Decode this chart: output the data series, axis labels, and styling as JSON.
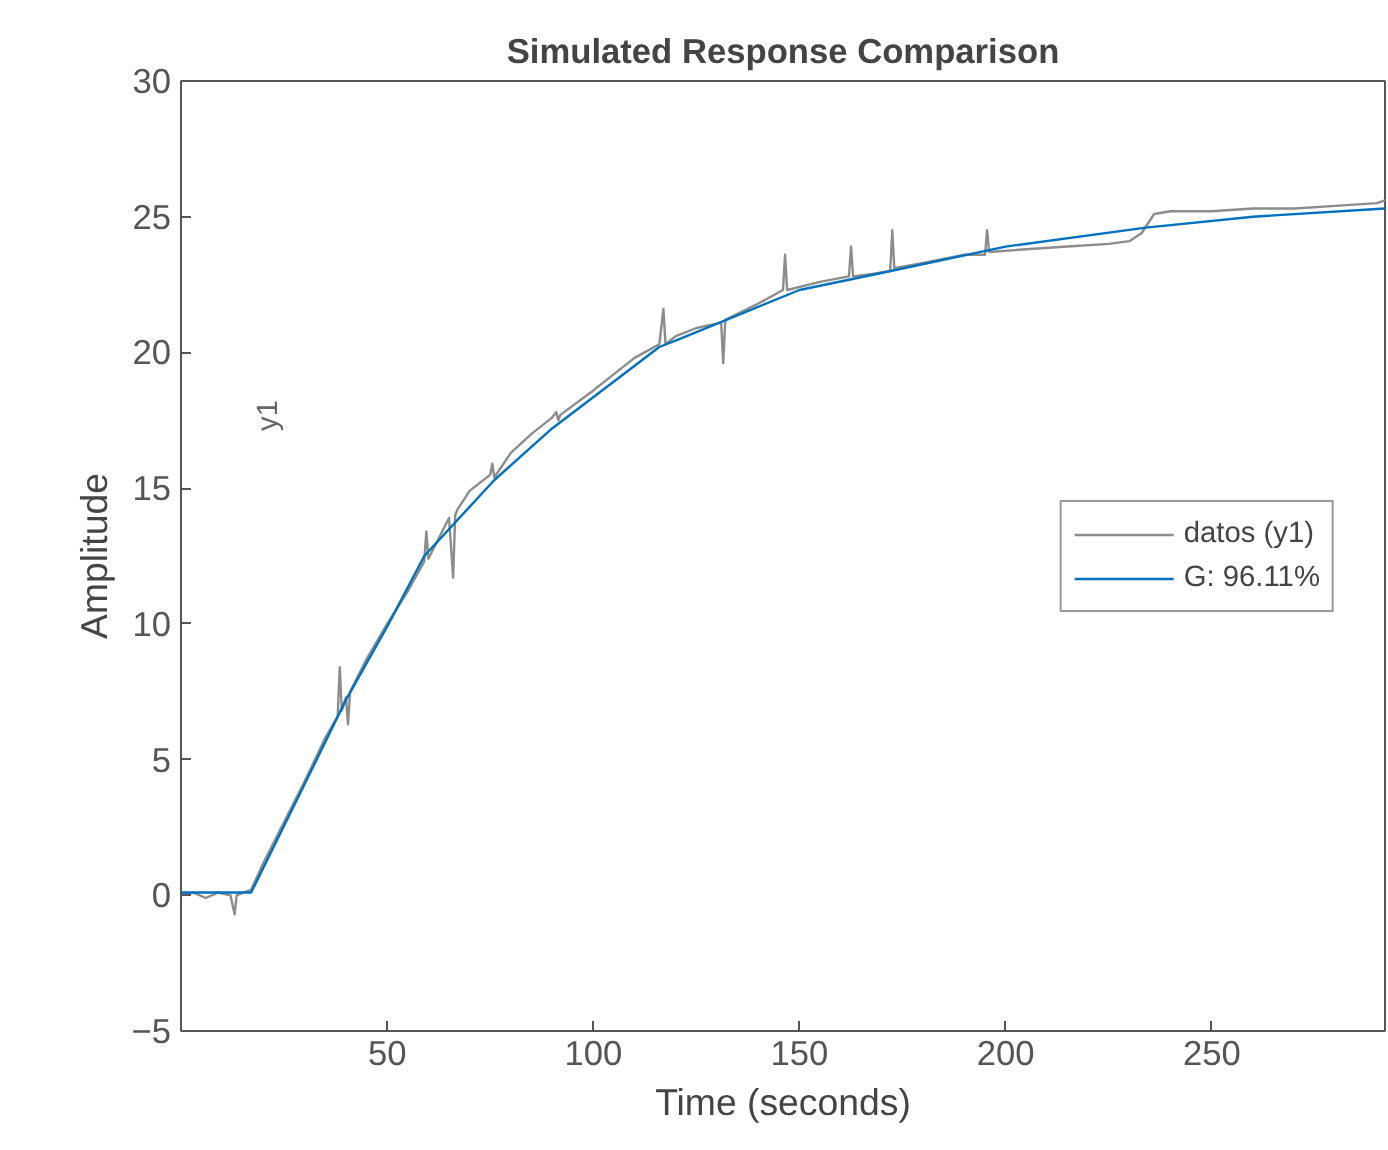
{
  "chart_data": {
    "type": "line",
    "title": "Simulated Response Comparison",
    "xlabel": "Time (seconds)",
    "ylabel": "Amplitude",
    "annotations": [
      "y1"
    ],
    "xlim": [
      0,
      292
    ],
    "ylim": [
      -5,
      30
    ],
    "xticks": [
      50,
      100,
      150,
      200,
      250
    ],
    "yticks": [
      -5,
      0,
      5,
      10,
      15,
      20,
      25,
      30
    ],
    "grid": false,
    "legend": "right",
    "line_style": "solid",
    "marker": "none",
    "series": [
      {
        "name": "datos (y1)",
        "color": "#8c8c8c",
        "x": [
          0,
          3,
          6,
          9,
          12,
          13,
          13.5,
          15,
          17,
          20,
          25,
          30,
          35,
          38,
          38.5,
          39,
          40,
          40.5,
          41,
          45,
          50,
          55,
          59,
          59.5,
          60,
          65,
          66,
          66.5,
          67,
          70,
          75,
          75.5,
          76,
          80,
          85,
          90,
          91,
          91.5,
          92,
          100,
          110,
          116,
          117,
          117.5,
          120,
          125,
          131,
          131.5,
          132,
          140,
          146,
          146.5,
          147,
          155,
          162,
          162.5,
          163,
          168,
          172,
          172.5,
          173,
          180,
          190,
          195,
          195.5,
          196,
          205,
          215,
          225,
          230,
          233,
          236,
          240,
          250,
          260,
          270,
          280,
          290,
          292
        ],
        "values": [
          0,
          0.1,
          -0.1,
          0.1,
          0,
          -0.7,
          0,
          0.1,
          0.2,
          1.2,
          2.7,
          4.2,
          5.8,
          6.6,
          8.4,
          6.8,
          7.3,
          6.3,
          7.5,
          8.7,
          10.0,
          11.2,
          12.3,
          13.4,
          12.4,
          13.9,
          11.7,
          14.0,
          14.2,
          14.9,
          15.5,
          15.9,
          15.4,
          16.3,
          17.0,
          17.6,
          17.8,
          17.5,
          17.7,
          18.6,
          19.8,
          20.3,
          21.6,
          20.3,
          20.6,
          20.9,
          21.1,
          19.6,
          21.2,
          21.8,
          22.3,
          23.6,
          22.3,
          22.6,
          22.8,
          23.9,
          22.8,
          22.9,
          23.0,
          24.5,
          23.1,
          23.3,
          23.6,
          23.6,
          24.5,
          23.7,
          23.8,
          23.9,
          24.0,
          24.1,
          24.4,
          25.1,
          25.2,
          25.2,
          25.3,
          25.3,
          25.4,
          25.5,
          25.6
        ]
      },
      {
        "name": "G: 96.11%",
        "color": "#0072bd",
        "x": [
          0,
          17,
          30,
          40,
          50,
          59,
          76,
          90,
          116,
          121,
          150,
          169,
          200,
          234,
          260,
          292
        ],
        "values": [
          0.1,
          0.1,
          4.1,
          7.2,
          9.9,
          12.5,
          15.3,
          17.2,
          20.2,
          20.5,
          22.3,
          22.9,
          23.9,
          24.6,
          25.0,
          25.3
        ]
      }
    ]
  }
}
